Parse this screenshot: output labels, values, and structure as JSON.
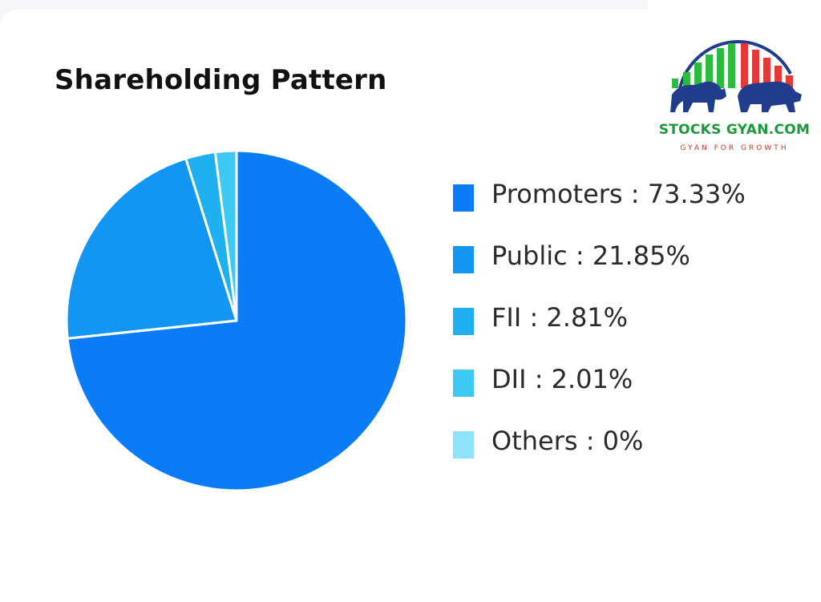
{
  "page": {
    "title": "Shareholding Pattern"
  },
  "logo": {
    "name": "STOCKS GYAN.COM",
    "tagline": "GYAN FOR GROWTH"
  },
  "chart_data": {
    "type": "pie",
    "title": "Shareholding Pattern",
    "legend_position": "right",
    "slices": [
      {
        "label": "Promoters",
        "value": 73.33,
        "display": "Promoters : 73.33%",
        "color": "#0a7cf5"
      },
      {
        "label": "Public",
        "value": 21.85,
        "display": "Public : 21.85%",
        "color": "#1296f2"
      },
      {
        "label": "FII",
        "value": 2.81,
        "display": "FII : 2.81%",
        "color": "#1fb0ef"
      },
      {
        "label": "DII",
        "value": 2.01,
        "display": "DII : 2.01%",
        "color": "#3ec8f4"
      },
      {
        "label": "Others",
        "value": 0,
        "display": "Others : 0%",
        "color": "#8ee2fb"
      }
    ]
  }
}
